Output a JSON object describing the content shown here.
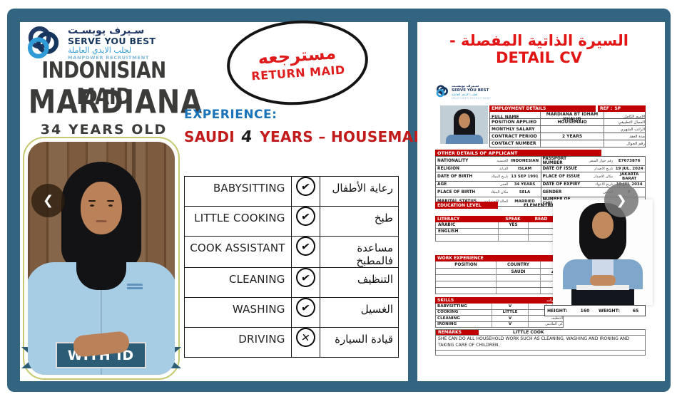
{
  "colors": {
    "teal": "#336480",
    "header_red": "#c00000",
    "title_red": "#e21414",
    "exp_blue": "#1b74b8",
    "text_red": "#c21b1b",
    "ribbon": "#2d5c77",
    "logo_navy": "#1f3864",
    "logo_blue": "#2f9cd8"
  },
  "icons": {
    "prev": "❮",
    "next": "❯",
    "check": "✔",
    "cross": "✕"
  },
  "left_panel": {
    "logo": {
      "arabic_name": "سـيرف يوبسـت",
      "name": "SERVE YOU BEST",
      "arabic_tagline": "لجلب الايدي العاملة",
      "tagline": "MANPOWER RECRUITMENT"
    },
    "title": "INDONISIAN MAID",
    "name": "MARDIANA",
    "age": "34  YEARS OLD",
    "stamp": {
      "arabic": "مسترجعه",
      "english": "RETURN MAID"
    },
    "experience_label": "EXPERIENCE:",
    "experience": {
      "prefix": "SAUDI",
      "hand": "4",
      "suffix": "YEARS – HOUSEMAID"
    },
    "photo_badge": "WITH ID",
    "skills_table": [
      {
        "en": "BABYSITTING",
        "mark": "check",
        "ar": "رعاية الأطفال"
      },
      {
        "en": "LITTLE COOKING",
        "mark": "check",
        "ar": "طبخ"
      },
      {
        "en": "COOK ASSISTANT",
        "mark": "check",
        "ar": "مساعدة فالمطبخ"
      },
      {
        "en": "CLEANING",
        "mark": "check",
        "ar": "التنظيف"
      },
      {
        "en": "WASHING",
        "mark": "check",
        "ar": "الغسيل"
      },
      {
        "en": "DRIVING",
        "mark": "cross",
        "ar": "قيادة السيارة"
      }
    ]
  },
  "right_panel": {
    "title": "السيرة الذاتية المفصلة - DETAIL CV",
    "cv": {
      "employment_header": "EMPLOYMENT DETAILS",
      "ref_label": "REF :",
      "ref_value": "SP",
      "employment_rows": [
        {
          "label": "FULL NAME",
          "value": "MARDIANA BT IDHAM KHALID",
          "ar": "الاسم الكامل"
        },
        {
          "label": "POSITION APPLIED",
          "value": "HOUSEMAID",
          "ar": "المجال التطبيقي"
        },
        {
          "label": "MONTHLY SALARY",
          "value": "",
          "ar": "الراتب الشهري"
        },
        {
          "label": "CONTRACT PERIOD",
          "value": "2  YEARS",
          "ar": "مدة العقد"
        },
        {
          "label": "CONTACT NUMBER",
          "value": "",
          "ar": "رقم الجوال"
        }
      ],
      "other_header": "OTHER DETAILS OF APPLICANT",
      "other_left": [
        {
          "label": "NATIONALITY",
          "ar": "الجنسية",
          "value": "INDONESIAN"
        },
        {
          "label": "RELIGION",
          "ar": "الديانة",
          "value": "ISLAM"
        },
        {
          "label": "DATE OF BIRTH",
          "ar": "تاريخ الميلاد",
          "value": "13 SEP 1991"
        },
        {
          "label": "AGE",
          "ar": "العمر",
          "value": "34 YEARS"
        },
        {
          "label": "PLACE OF BIRTH",
          "ar": "مكان الميلاد",
          "value": "SELA"
        },
        {
          "label": "MARITAL STATUS",
          "ar": "الحالة الاجتماعية",
          "value": "MARRIED"
        }
      ],
      "other_right": [
        {
          "label": "PASSPORT NUMBER",
          "ar": "رقم جواز السفر",
          "value": "E7673876"
        },
        {
          "label": "DATE OF ISSUE",
          "ar": "تاريخ الاصدار",
          "value": "19 JUL. 2024"
        },
        {
          "label": "PLACE OF ISSUE",
          "ar": "مكان الاصدار",
          "value": "JAKARTA BARAT"
        },
        {
          "label": "DATE OF EXPIRY",
          "ar": "تاريخ الانتهاء",
          "value": "19 JUL 2034"
        },
        {
          "label": "GENDER",
          "ar": "الجنس",
          "value": "F"
        },
        {
          "label": "NUMBER OF CHILDREN",
          "ar": "عدد الاطفال",
          "value": "1 CHILD"
        }
      ],
      "education_label": "EDUCATION LEVEL",
      "education_value": "ELEMENTRAY SCHOOL",
      "literacy": {
        "headers": [
          "LITERACY",
          "SPEAK",
          "READ",
          "WRITE"
        ],
        "rows": [
          [
            "ARABIC",
            "YES",
            "",
            ""
          ],
          [
            "ENGLISH",
            "",
            "",
            ""
          ],
          [
            "",
            "",
            "",
            ""
          ]
        ]
      },
      "work_header": "WORK EXPERIENCE",
      "work_columns": [
        "POSITION",
        "COUNTRY",
        "PERIOD"
      ],
      "work_rows": [
        [
          "",
          "SAUDI",
          "4 YEARS"
        ],
        [
          "",
          "",
          ""
        ],
        [
          "",
          "",
          ""
        ],
        [
          "",
          "",
          ""
        ]
      ],
      "skills_header": "SKILLS",
      "skills_header_ar": "المهارات",
      "skills_rows": [
        {
          "label": "BABYSITTING",
          "value": "V",
          "ar": "رعاية الصغار"
        },
        {
          "label": "COOKING",
          "value": "LITTLE",
          "ar": "طبخ"
        },
        {
          "label": "CLEANING",
          "value": "V",
          "ar": "التنظيف"
        },
        {
          "label": "IRONING",
          "value": "V",
          "ar": "كي الملابس"
        }
      ],
      "height_label": "HEIGHT:",
      "height_value": "160",
      "weight_label": "WEIGHT:",
      "weight_value": "65",
      "remarks_label": "REMARKS",
      "remarks_title": "LITTLE COOK",
      "remarks_text": "SHE CAN DO ALL HOUSEHOLD WORK SUCH AS CLEANING, WASHING AND IRONING AND TAKING CARE OF CHILDREN."
    }
  }
}
